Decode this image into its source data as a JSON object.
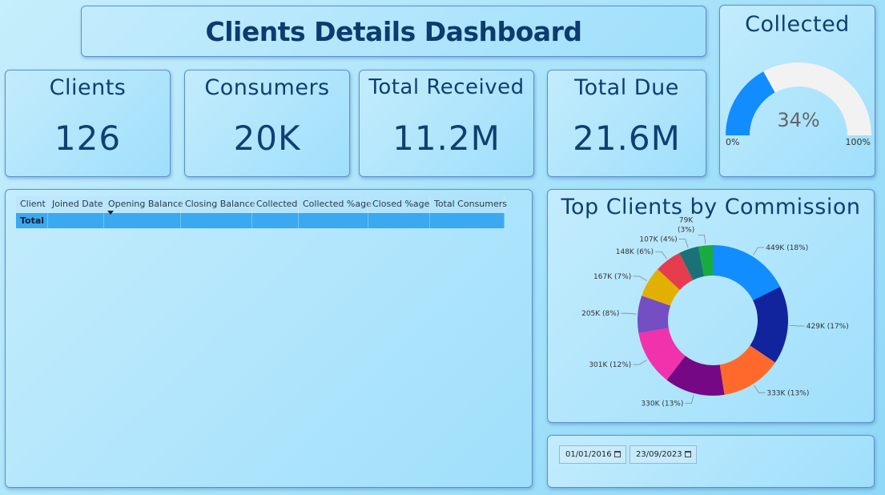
{
  "header": {
    "title": "Clients Details Dashboard"
  },
  "kpis": {
    "clients": {
      "label": "Clients",
      "value": "126"
    },
    "consumers": {
      "label": "Consumers",
      "value": "20K"
    },
    "total_received": {
      "label": "Total Received",
      "value": "11.2M"
    },
    "total_due": {
      "label": "Total Due",
      "value": "21.6M"
    }
  },
  "gauge": {
    "title": "Collected",
    "value_label": "34%",
    "value_fraction": 0.34,
    "min_label": "0%",
    "max_label": "100%",
    "fill_color": "#118dff",
    "track_color": "#f2f2f2"
  },
  "table": {
    "columns": [
      "Client",
      "Joined Date",
      "Opening Balance",
      "Closing Balance",
      "Collected",
      "Collected %age",
      "Closed %age",
      "Total Consumers"
    ],
    "total_label": "Total",
    "sorted_column": "Opening Balance",
    "total_row_color": "#3aa9ef"
  },
  "chart_data": {
    "type": "pie",
    "title": "Top Clients by Commission",
    "donut": true,
    "slices": [
      {
        "value": 449,
        "label": "449K (18%)",
        "color": "#118dff"
      },
      {
        "value": 429,
        "label": "429K (17%)",
        "color": "#12239e"
      },
      {
        "value": 333,
        "label": "333K (13%)",
        "color": "#ff6a2c"
      },
      {
        "value": 330,
        "label": "330K (13%)",
        "color": "#750985"
      },
      {
        "value": 301,
        "label": "301K (12%)",
        "color": "#f032ac"
      },
      {
        "value": 205,
        "label": "205K (8%)",
        "color": "#744ec2"
      },
      {
        "value": 167,
        "label": "167K (7%)",
        "color": "#e2b000"
      },
      {
        "value": 148,
        "label": "148K (6%)",
        "color": "#e73c4e"
      },
      {
        "value": 107,
        "label": "107K (4%)",
        "color": "#197278"
      },
      {
        "value": 79,
        "label_lines": [
          "79K",
          "(3%)"
        ],
        "color": "#1aab40"
      }
    ]
  },
  "date_slicer": {
    "start": "01/01/2016",
    "end": "23/09/2023"
  }
}
